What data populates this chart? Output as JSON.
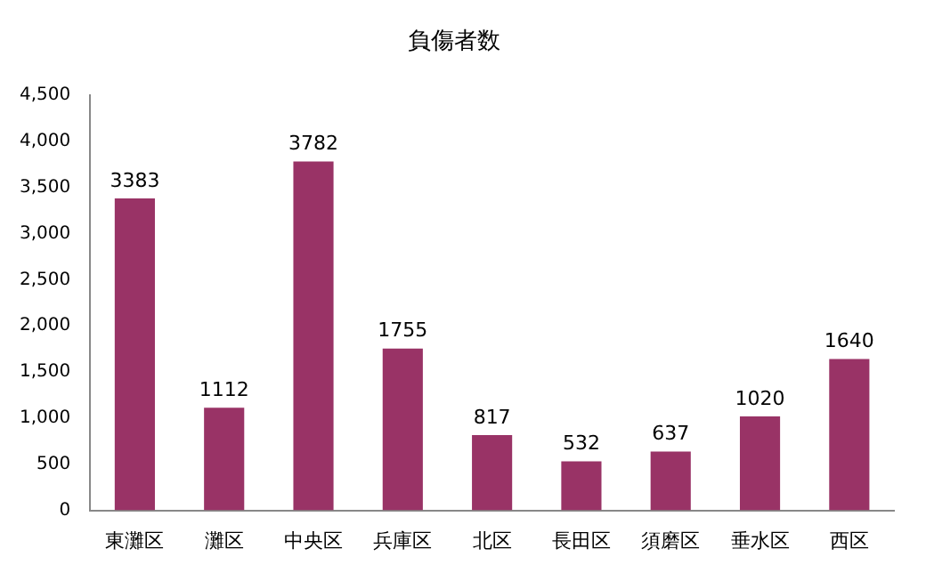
{
  "chart_data": {
    "type": "bar",
    "title": "負傷者数",
    "categories": [
      "東灘区",
      "灘区",
      "中央区",
      "兵庫区",
      "北区",
      "長田区",
      "須磨区",
      "垂水区",
      "西区"
    ],
    "values": [
      3383,
      1112,
      3782,
      1755,
      817,
      532,
      637,
      1020,
      1640
    ],
    "color": "#993366",
    "ylim": [
      0,
      4500
    ],
    "yticks": [
      0,
      500,
      {
        "value": 1000,
        "label": "1,000"
      },
      {
        "value": 1500,
        "label": "1,500"
      },
      {
        "value": 2000,
        "label": "2,000"
      },
      {
        "value": 2500,
        "label": "2,500"
      },
      {
        "value": 3000,
        "label": "3,000"
      },
      {
        "value": 3500,
        "label": "3,500"
      },
      {
        "value": 4000,
        "label": "4,000"
      },
      {
        "value": 4500,
        "label": "4,500"
      }
    ],
    "grid": false,
    "legend": false,
    "data_labels": true
  }
}
